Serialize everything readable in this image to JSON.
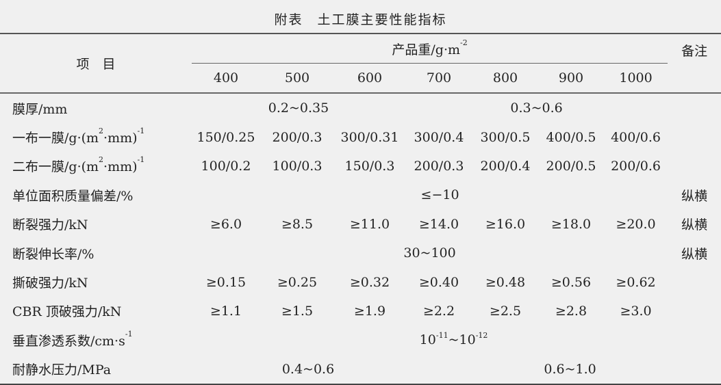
{
  "title": "附表　土工膜主要性能指标",
  "header": {
    "item": "项　目",
    "group": "产品重/g·m",
    "group_sup": "-2",
    "remark": "备注",
    "weights": [
      "400",
      "500",
      "600",
      "700",
      "800",
      "900",
      "1000"
    ]
  },
  "rows": [
    {
      "label": "膜厚/mm",
      "span_a": "0.2~0.35",
      "span_b": "0.3~0.6",
      "remark": ""
    },
    {
      "label_pre": "一布一膜/g·(m",
      "label_sup": "2",
      "label_mid": "·mm)",
      "label_sup2": "-1",
      "values": [
        "150/0.25",
        "200/0.3",
        "300/0.31",
        "300/0.4",
        "300/0.5",
        "400/0.5",
        "400/0.6"
      ],
      "remark": ""
    },
    {
      "label_pre": "二布一膜/g·(m",
      "label_sup": "2",
      "label_mid": "·mm)",
      "label_sup2": "-1",
      "values": [
        "100/0.2",
        "100/0.3",
        "150/0.3",
        "200/0.3",
        "200/0.4",
        "200/0.5",
        "200/0.6"
      ],
      "remark": ""
    },
    {
      "label": "单位面积质量偏差/%",
      "span": "≤−10",
      "remark": "纵横"
    },
    {
      "label": "断裂强力/kN",
      "values": [
        "≥6.0",
        "≥8.5",
        "≥11.0",
        "≥14.0",
        "≥16.0",
        "≥18.0",
        "≥20.0"
      ],
      "remark": "纵横"
    },
    {
      "label": "断裂伸长率/%",
      "span": "30~100",
      "remark": "纵横"
    },
    {
      "label": "撕破强力/kN",
      "values": [
        "≥0.15",
        "≥0.25",
        "≥0.32",
        "≥0.40",
        "≥0.48",
        "≥0.56",
        "≥0.62"
      ],
      "remark": ""
    },
    {
      "label": "CBR 顶破强力/kN",
      "values": [
        "≥1.1",
        "≥1.5",
        "≥1.9",
        "≥2.2",
        "≥2.5",
        "≥2.8",
        "≥3.0"
      ],
      "remark": ""
    },
    {
      "label_pre": "垂直渗透系数/cm·s",
      "label_sup": "-1",
      "span_base1": "10",
      "span_sup1": "-11",
      "span_tilde": "~10",
      "span_sup2": "-12",
      "remark": ""
    },
    {
      "label": "耐静水压力/MPa",
      "span_a": "0.4~0.6",
      "span_b": "0.6~1.0",
      "remark": ""
    }
  ]
}
